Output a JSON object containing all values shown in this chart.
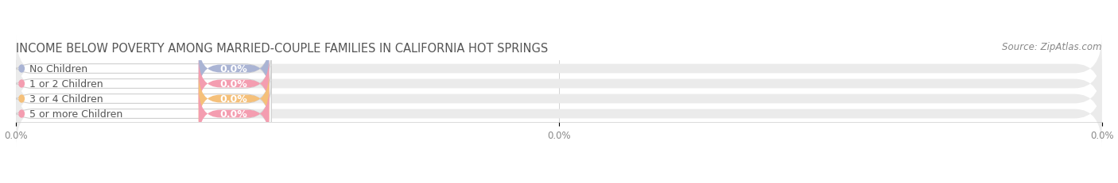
{
  "title": "INCOME BELOW POVERTY AMONG MARRIED-COUPLE FAMILIES IN CALIFORNIA HOT SPRINGS",
  "source": "Source: ZipAtlas.com",
  "categories": [
    "No Children",
    "1 or 2 Children",
    "3 or 4 Children",
    "5 or more Children"
  ],
  "values": [
    0.0,
    0.0,
    0.0,
    0.0
  ],
  "bar_colors": [
    "#aab4d4",
    "#f49db0",
    "#f5c07a",
    "#f49db0"
  ],
  "bar_bg_color": "#ebebeb",
  "title_fontsize": 10.5,
  "source_fontsize": 8.5,
  "tick_fontsize": 8.5,
  "bar_label_fontsize": 9,
  "category_fontsize": 9,
  "background_color": "#ffffff",
  "figsize": [
    14.06,
    2.32
  ],
  "dpi": 100
}
